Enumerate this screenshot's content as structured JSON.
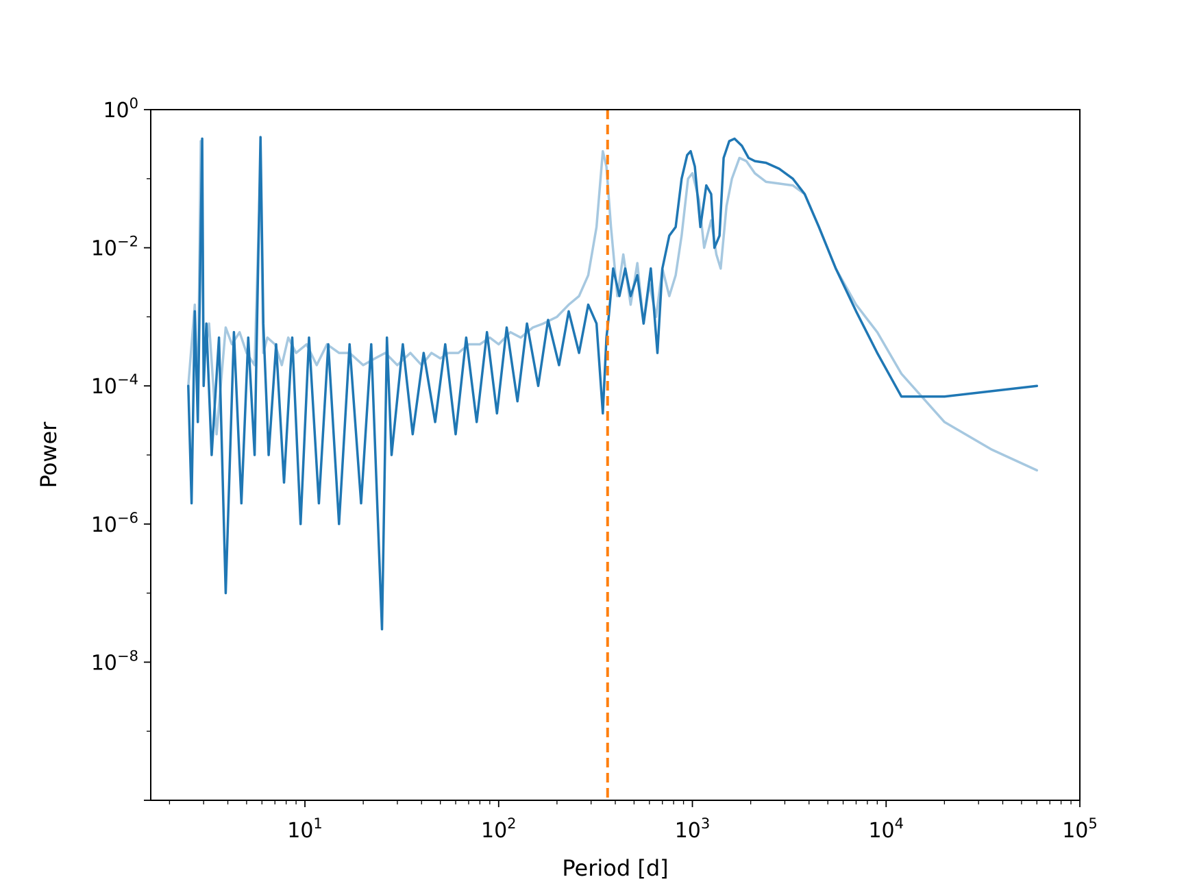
{
  "chart_data": {
    "type": "line",
    "title": "",
    "xlabel": "Period [d]",
    "ylabel": "Power",
    "xscale": "log",
    "yscale": "log",
    "xlim": [
      1.6,
      100000
    ],
    "ylim": [
      1e-10,
      1
    ],
    "grid": false,
    "x_ticks": [
      {
        "value": 10,
        "base": "10",
        "exp": "1"
      },
      {
        "value": 100,
        "base": "10",
        "exp": "2"
      },
      {
        "value": 1000,
        "base": "10",
        "exp": "3"
      },
      {
        "value": 10000,
        "base": "10",
        "exp": "4"
      },
      {
        "value": 100000,
        "base": "10",
        "exp": "5"
      }
    ],
    "y_ticks": [
      {
        "value": 1,
        "base": "10",
        "exp": "0"
      },
      {
        "value": 0.01,
        "base": "10",
        "exp": "−2"
      },
      {
        "value": 0.0001,
        "base": "10",
        "exp": "−4"
      },
      {
        "value": 1e-06,
        "base": "10",
        "exp": "−6"
      },
      {
        "value": 1e-08,
        "base": "10",
        "exp": "−8"
      }
    ],
    "series": [
      {
        "color": "#a6c8e0",
        "x": [
          2.5,
          2.7,
          2.8,
          2.9,
          3.0,
          3.2,
          3.5,
          3.9,
          4.2,
          4.6,
          5.0,
          5.5,
          5.9,
          6.1,
          6.4,
          7.0,
          7.6,
          8.2,
          9.0,
          10.2,
          11.5,
          13.0,
          15.0,
          17.0,
          20.0,
          23.0,
          26.0,
          30.0,
          35.0,
          40.0,
          45.0,
          50.0,
          55.0,
          62.0,
          70.0,
          80.0,
          90.0,
          100.0,
          115.0,
          130.0,
          150.0,
          170.0,
          200.0,
          230.0,
          260.0,
          290.0,
          320.0,
          345.0,
          360.0,
          380.0,
          410.0,
          440.0,
          480.0,
          520.0,
          560.0,
          600.0,
          650.0,
          700.0,
          760.0,
          820.0,
          880.0,
          950.0,
          1000.0,
          1080.0,
          1150.0,
          1250.0,
          1330.0,
          1400.0,
          1500.0,
          1600.0,
          1750.0,
          1900.0,
          2100.0,
          2400.0,
          2800.0,
          3300.0,
          3800.0,
          4500.0,
          5500.0,
          7000.0,
          9000.0,
          12000.0,
          20000.0,
          35000.0,
          60000.0
        ],
        "y": [
          0.0001,
          0.0015,
          5e-05,
          0.35,
          0.0002,
          0.0008,
          2e-05,
          0.0007,
          0.0004,
          0.0006,
          0.0003,
          0.0002,
          0.15,
          0.0003,
          0.0005,
          0.0004,
          0.0002,
          0.0005,
          0.0003,
          0.0004,
          0.0002,
          0.0004,
          0.0003,
          0.0003,
          0.0002,
          0.00025,
          0.0003,
          0.0002,
          0.0003,
          0.0002,
          0.0003,
          0.00025,
          0.0003,
          0.0003,
          0.0004,
          0.0004,
          0.0005,
          0.0004,
          0.0006,
          0.0005,
          0.0007,
          0.0008,
          0.001,
          0.0015,
          0.002,
          0.004,
          0.02,
          0.25,
          0.15,
          0.02,
          0.002,
          0.008,
          0.0015,
          0.006,
          0.0008,
          0.003,
          0.001,
          0.005,
          0.002,
          0.004,
          0.015,
          0.1,
          0.12,
          0.05,
          0.01,
          0.025,
          0.008,
          0.005,
          0.04,
          0.1,
          0.2,
          0.18,
          0.12,
          0.09,
          0.085,
          0.08,
          0.06,
          0.02,
          0.005,
          0.0015,
          0.0006,
          0.00015,
          3e-05,
          1.2e-05,
          6e-06
        ]
      },
      {
        "color": "#1f77b4",
        "x": [
          2.5,
          2.6,
          2.7,
          2.8,
          2.95,
          3.0,
          3.1,
          3.3,
          3.6,
          3.9,
          4.3,
          4.7,
          5.1,
          5.5,
          5.9,
          6.1,
          6.5,
          7.1,
          7.8,
          8.6,
          9.5,
          10.5,
          11.8,
          13.2,
          15.0,
          17.0,
          19.5,
          22.0,
          25.0,
          26.5,
          28.0,
          32.0,
          36.0,
          41.0,
          47.0,
          53.0,
          60.0,
          68.0,
          77.0,
          87.0,
          98.0,
          110.0,
          125.0,
          140.0,
          160.0,
          180.0,
          205.0,
          230.0,
          260.0,
          290.0,
          320.0,
          345.0,
          360.0,
          370.0,
          390.0,
          420.0,
          450.0,
          480.0,
          520.0,
          560.0,
          610.0,
          660.0,
          700.0,
          760.0,
          820.0,
          880.0,
          940.0,
          980.0,
          1030.0,
          1100.0,
          1180.0,
          1250.0,
          1300.0,
          1380.0,
          1450.0,
          1550.0,
          1650.0,
          1800.0,
          1950.0,
          2100.0,
          2400.0,
          2800.0,
          3300.0,
          3800.0,
          4500.0,
          5500.0,
          7000.0,
          9000.0,
          12000.0,
          20000.0,
          60000.0
        ],
        "y": [
          0.0001,
          2e-06,
          0.0012,
          3e-05,
          0.38,
          0.0001,
          0.0008,
          1e-05,
          0.0005,
          1e-07,
          0.0006,
          2e-06,
          0.0005,
          1e-05,
          0.4,
          0.0008,
          1e-05,
          0.0004,
          4e-06,
          0.0005,
          1e-06,
          0.0005,
          2e-06,
          0.0004,
          1e-06,
          0.0004,
          2e-06,
          0.0004,
          3e-08,
          0.0005,
          1e-05,
          0.0004,
          2e-05,
          0.0003,
          3e-05,
          0.0004,
          2e-05,
          0.0005,
          3e-05,
          0.0006,
          4e-05,
          0.0007,
          6e-05,
          0.0008,
          0.0001,
          0.0009,
          0.0002,
          0.0012,
          0.0003,
          0.0015,
          0.0008,
          4e-05,
          0.0005,
          0.001,
          0.005,
          0.002,
          0.005,
          0.002,
          0.004,
          0.0008,
          0.005,
          0.0003,
          0.005,
          0.015,
          0.02,
          0.1,
          0.22,
          0.25,
          0.15,
          0.02,
          0.08,
          0.06,
          0.01,
          0.015,
          0.2,
          0.35,
          0.38,
          0.3,
          0.2,
          0.18,
          0.17,
          0.14,
          0.1,
          0.06,
          0.02,
          0.005,
          0.0012,
          0.0003,
          7e-05,
          7e-05,
          0.0001
        ]
      }
    ],
    "reference_line": {
      "x": 365,
      "color": "#ff7f0e",
      "style": "dashed"
    }
  }
}
